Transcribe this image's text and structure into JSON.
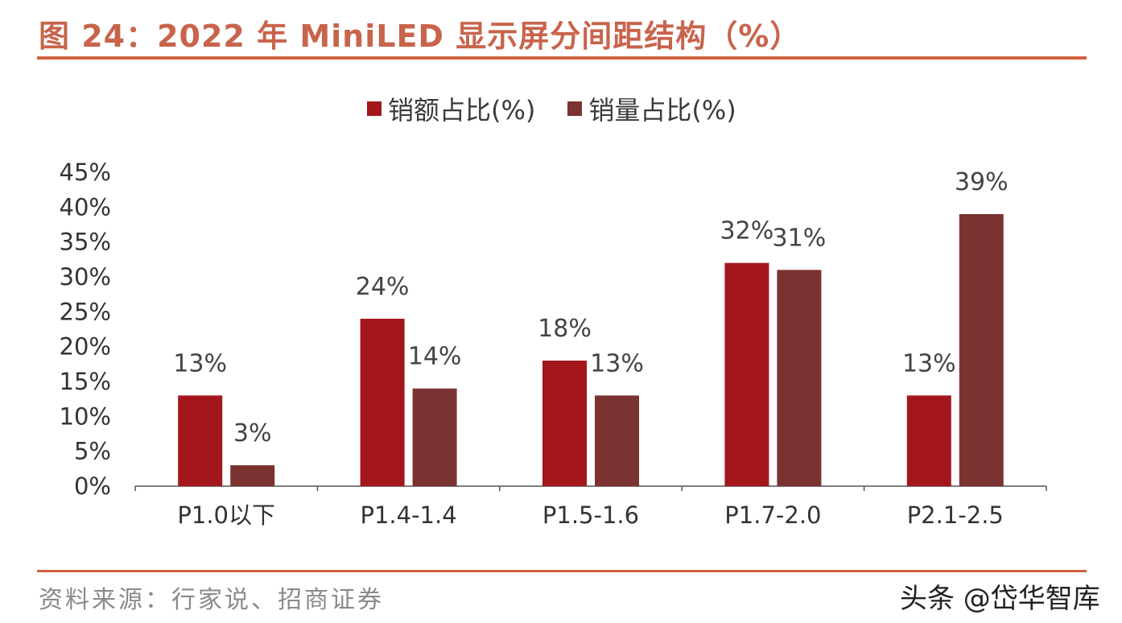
{
  "header": {
    "title": "图 24：2022 年 MiniLED 显示屏分间距结构（%）"
  },
  "footer": {
    "source": "资料来源：行家说、招商证券",
    "watermark": "头条 @岱华智库"
  },
  "colors": {
    "accent": "#d2603f",
    "series1": "#a3171c",
    "series2": "#7b3331"
  },
  "chart_data": {
    "type": "bar",
    "title": "",
    "categories": [
      "P1.0以下",
      "P1.4-1.4",
      "P1.5-1.6",
      "P1.7-2.0",
      "P2.1-2.5"
    ],
    "series": [
      {
        "name": "销额占比(%)",
        "values": [
          13,
          24,
          18,
          32,
          13
        ],
        "labels": [
          "13%",
          "24%",
          "18%",
          "32%",
          "13%"
        ]
      },
      {
        "name": "销量占比(%)",
        "values": [
          3,
          14,
          13,
          31,
          39
        ],
        "labels": [
          "3%",
          "14%",
          "13%",
          "31%",
          "39%"
        ]
      }
    ],
    "yticks": [
      "0%",
      "5%",
      "10%",
      "15%",
      "20%",
      "25%",
      "30%",
      "35%",
      "40%",
      "45%"
    ],
    "ylim": [
      0,
      45
    ],
    "xlabel": "",
    "ylabel": "",
    "legend": "top-center",
    "grid": false
  }
}
